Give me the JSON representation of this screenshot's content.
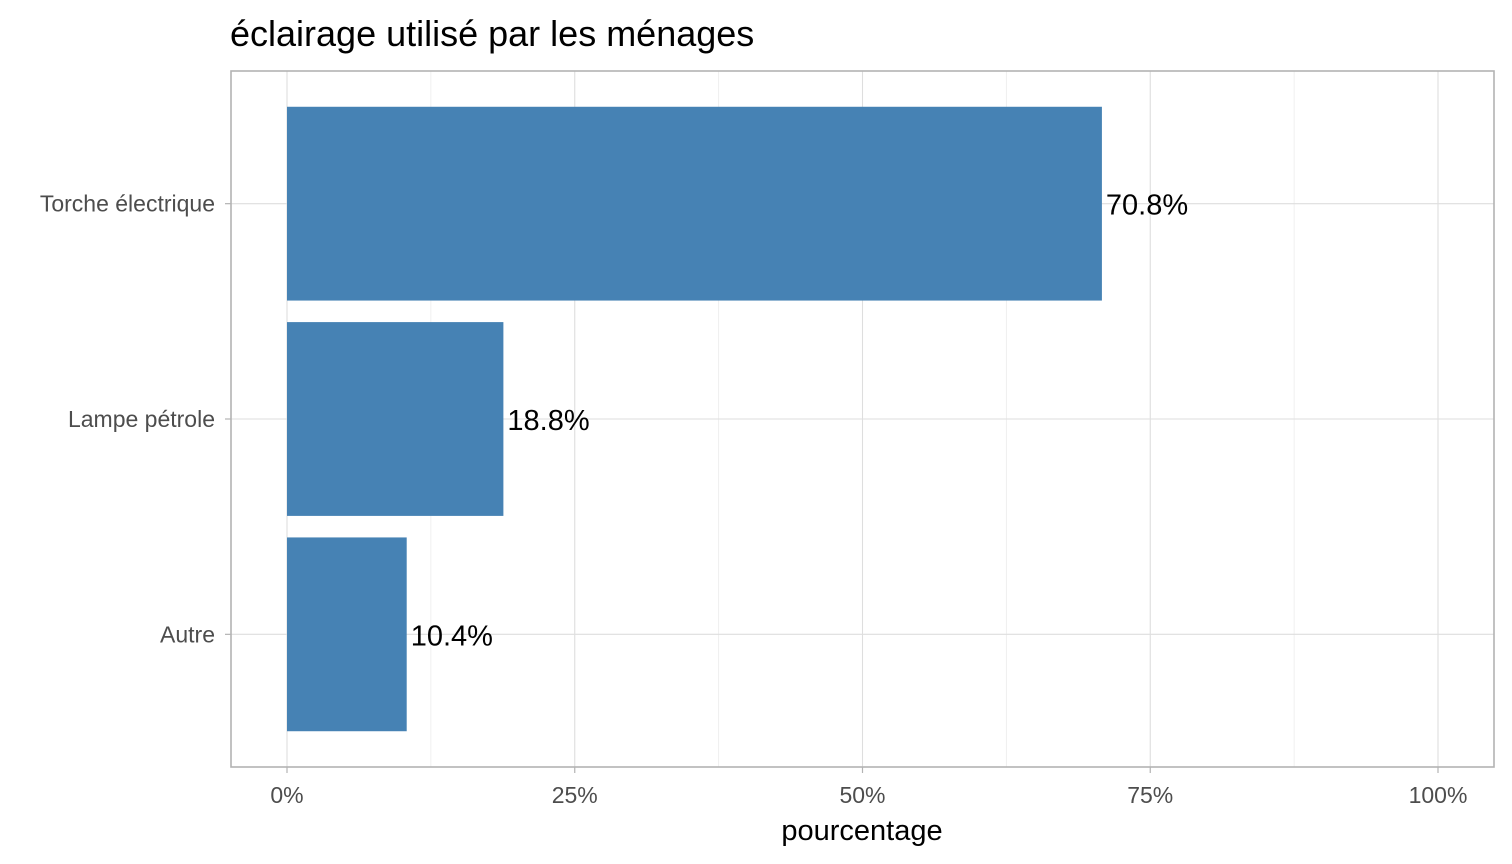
{
  "chart_data": {
    "type": "bar",
    "orientation": "horizontal",
    "title": "éclairage utilisé par les ménages",
    "xlabel": "pourcentage",
    "ylabel": "",
    "categories": [
      "Torche électrique",
      "Lampe pétrole",
      "Autre"
    ],
    "values": [
      70.8,
      18.8,
      10.4
    ],
    "data_labels": [
      "70.8%",
      "18.8%",
      "10.4%"
    ],
    "xlim": [
      0,
      100
    ],
    "x_ticks": [
      0,
      25,
      50,
      75,
      100
    ],
    "x_tick_labels": [
      "0%",
      "25%",
      "50%",
      "75%",
      "100%"
    ],
    "bar_color": "#4682B4",
    "grid": true,
    "legend": "none"
  }
}
